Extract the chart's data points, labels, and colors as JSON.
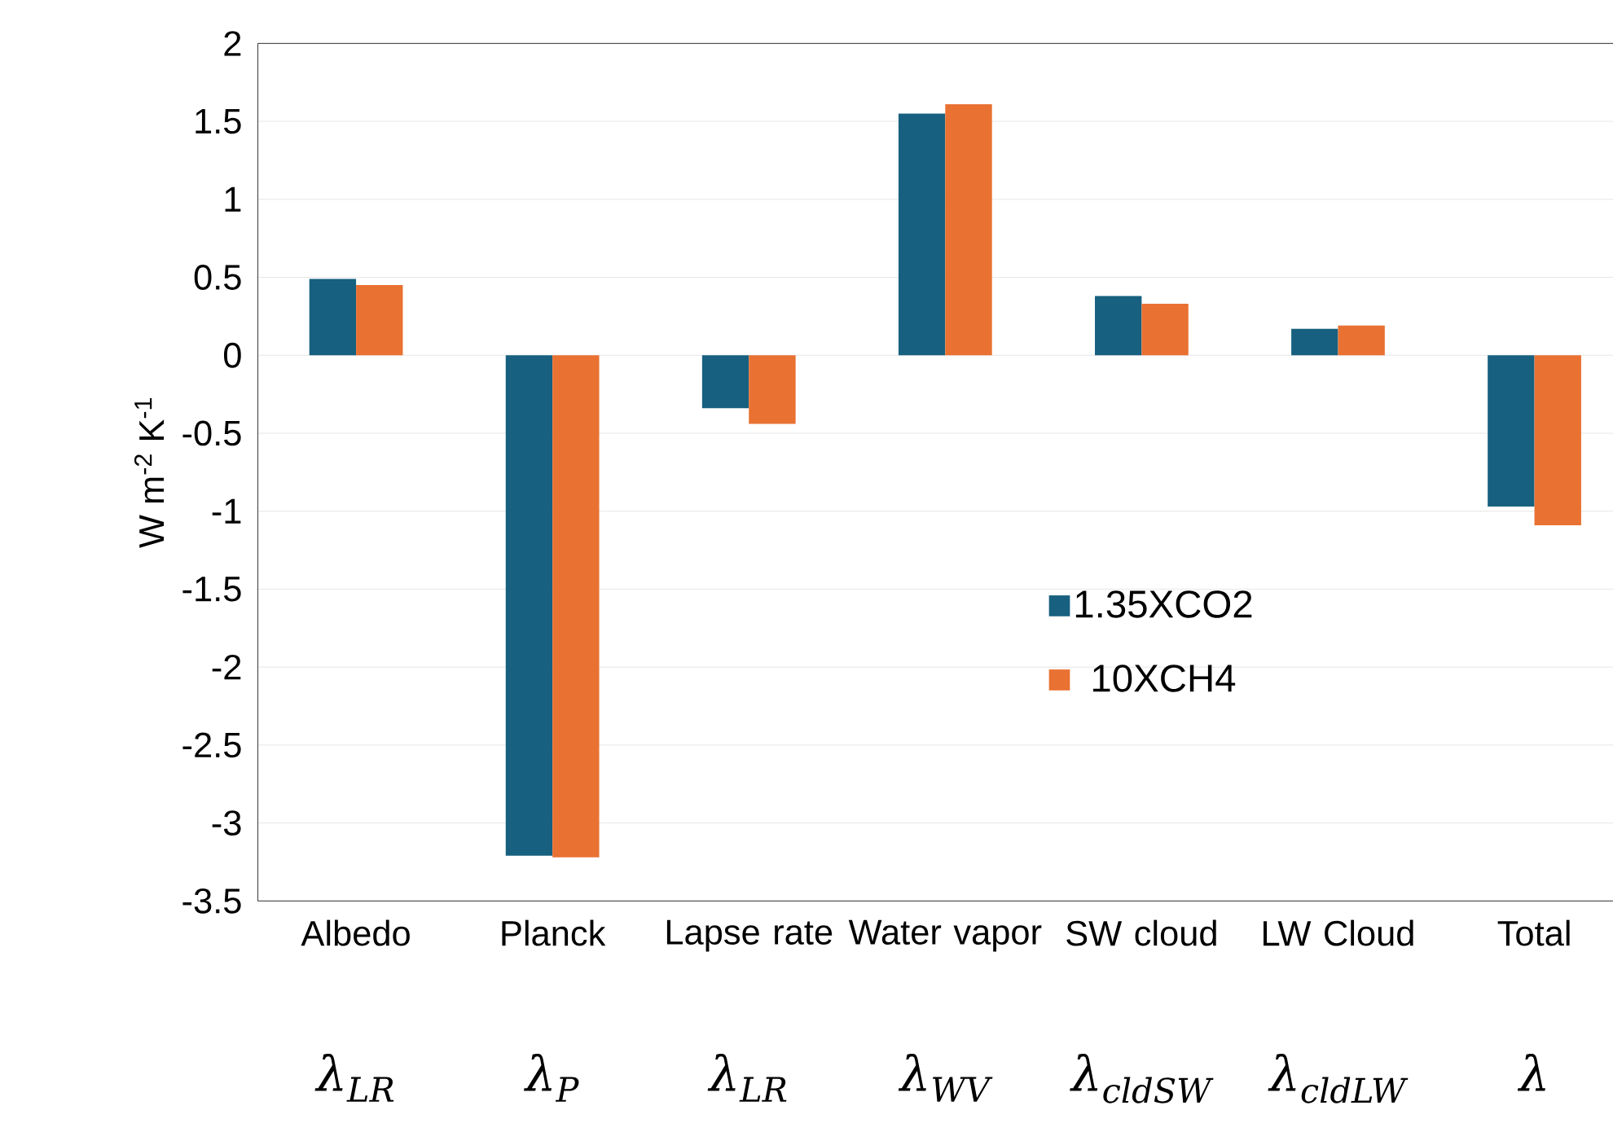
{
  "chart_data": {
    "type": "bar",
    "ylabel": "W m$^{-2}$ K$^{-1}$",
    "categories": [
      "Albedo",
      "Planck",
      "Lapse rate",
      "Water vapor",
      "SW cloud",
      "LW Cloud",
      "Total"
    ],
    "series": [
      {
        "name": "1.35XCO2",
        "color": "#17607f",
        "values": [
          0.49,
          -3.21,
          -0.34,
          1.55,
          0.38,
          0.17,
          -0.97
        ]
      },
      {
        "name": "10XCH4",
        "color": "#e97132",
        "values": [
          0.45,
          -3.22,
          -0.44,
          1.61,
          0.33,
          0.19,
          -1.09
        ]
      }
    ],
    "ylim": [
      -3.5,
      2
    ],
    "yticks": [
      -3.5,
      -3,
      -2.5,
      -2,
      -1.5,
      -1,
      -0.5,
      0,
      0.5,
      1,
      1.5,
      2
    ],
    "grid": "y",
    "legend": "right",
    "annotations": [
      "λ$_{LR}$",
      "λ$_{P}$",
      "λ$_{LR}$",
      "λ$_{WV}$",
      "λ$_{cldSW}$",
      "λ$_{cldLW}$",
      "λ"
    ]
  }
}
